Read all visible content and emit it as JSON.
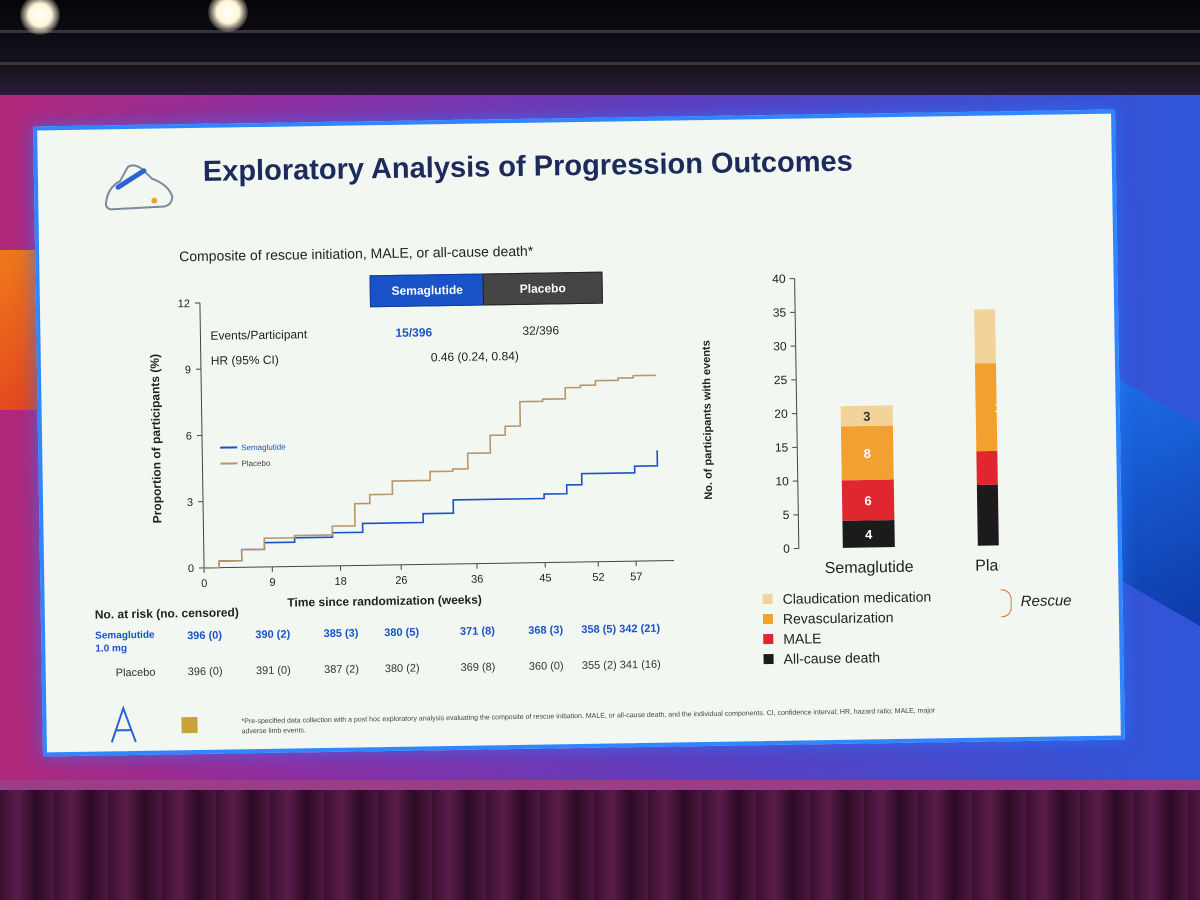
{
  "slide": {
    "title": "Exploratory Analysis of Progression Outcomes",
    "subtitle": "Composite of rescue initiation, MALE, or all-cause death*",
    "footnote": "*Pre-specified data collection with a post hoc exploratory analysis evaluating the composite of rescue initiation, MALE, or all-cause death, and the individual components. CI, confidence interval; HR, hazard ratio; MALE, major adverse limb events."
  },
  "km_legend": {
    "semaglutide_button": "Semaglutide",
    "placebo_button": "Placebo",
    "events_label": "Events/Participant",
    "events_sema": "15/396",
    "events_placebo": "32/396",
    "hr_label": "HR (95% CI)",
    "hr_value": "0.46 (0.24, 0.84)",
    "line_sema": "Semaglutide",
    "line_placebo": "Placebo"
  },
  "risk_table": {
    "title": "No. at risk (no. censored)",
    "sema_label": "Semaglutide 1.0 mg",
    "placebo_label": "Placebo",
    "sema": [
      "396 (0)",
      "390 (2)",
      "385 (3)",
      "380 (5)",
      "371 (8)",
      "368 (3)",
      "358 (5)",
      "342 (21)"
    ],
    "placebo": [
      "396 (0)",
      "391 (0)",
      "387 (2)",
      "380 (2)",
      "369 (8)",
      "360 (0)",
      "355 (2)",
      "341 (16)"
    ]
  },
  "bar_legend": {
    "items": [
      "Claudication medication",
      "Revascularization",
      "MALE",
      "All-cause death"
    ],
    "rescue_label": "Rescue"
  },
  "colors": {
    "semaglutide": "#1a52c8",
    "placebo": "#b8956a",
    "claudication": "#f2d49a",
    "revascularization": "#f2a030",
    "male": "#e0262e",
    "death": "#1b1b1b"
  },
  "chart_data": [
    {
      "type": "line",
      "title": "Composite of rescue initiation, MALE, or all-cause death*",
      "xlabel": "Time since randomization (weeks)",
      "ylabel": "Proportion of participants (%)",
      "xlim": [
        0,
        62
      ],
      "ylim": [
        0,
        12
      ],
      "xticks": [
        0,
        9,
        18,
        26,
        36,
        45,
        52,
        57
      ],
      "yticks": [
        0,
        3,
        6,
        9,
        12
      ],
      "series": [
        {
          "name": "Semaglutide",
          "x": [
            0,
            2,
            5,
            8,
            12,
            17,
            21,
            25,
            29,
            33,
            38,
            42,
            45,
            48,
            50,
            52,
            54,
            57,
            60
          ],
          "y": [
            0,
            0.3,
            0.8,
            1.1,
            1.3,
            1.5,
            1.9,
            1.9,
            2.3,
            2.9,
            2.9,
            2.9,
            3.1,
            3.5,
            4.0,
            4.0,
            4.0,
            4.3,
            5.0
          ]
        },
        {
          "name": "Placebo",
          "x": [
            0,
            2,
            5,
            8,
            12,
            17,
            20,
            22,
            25,
            28,
            30,
            33,
            35,
            38,
            40,
            42,
            45,
            48,
            50,
            52,
            55,
            57,
            60
          ],
          "y": [
            0,
            0.3,
            0.8,
            1.3,
            1.4,
            1.8,
            2.8,
            3.2,
            3.8,
            3.8,
            4.2,
            4.3,
            5.0,
            5.8,
            6.2,
            7.3,
            7.4,
            7.9,
            8.0,
            8.2,
            8.3,
            8.4,
            8.4
          ]
        }
      ]
    },
    {
      "type": "bar",
      "stacked": true,
      "categories": [
        "Semaglutide",
        "Placebo"
      ],
      "ylabel": "No. of participants with events",
      "ylim": [
        0,
        40
      ],
      "yticks": [
        0,
        5,
        10,
        15,
        20,
        25,
        30,
        35,
        40
      ],
      "series": [
        {
          "name": "All-cause death",
          "values": [
            4,
            9
          ]
        },
        {
          "name": "MALE",
          "values": [
            6,
            5
          ]
        },
        {
          "name": "Revascularization",
          "values": [
            8,
            13
          ]
        },
        {
          "name": "Claudication medication",
          "values": [
            3,
            8
          ]
        }
      ]
    }
  ]
}
